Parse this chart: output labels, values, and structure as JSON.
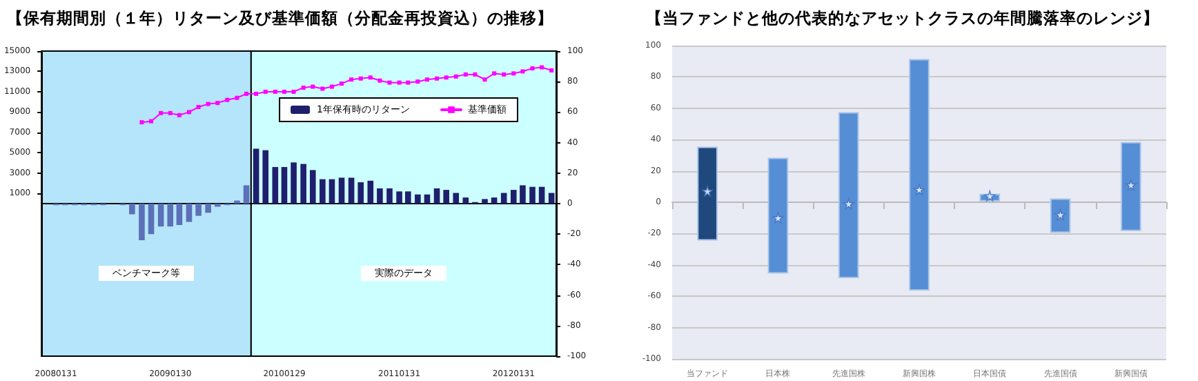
{
  "chart_data": [
    {
      "type": "bar",
      "title": "【保有期間別（１年）リターン及び基準価額（分配金再投資込）の推移】",
      "x": [
        "2008-01-31",
        "2008-02-29",
        "2008-03-31",
        "2008-04-30",
        "2008-05-31",
        "2008-06-30",
        "2008-07-31",
        "2008-08-31",
        "2008-09-30",
        "2008-10-31",
        "2008-11-30",
        "2008-12-31",
        "2009-01-30",
        "2009-02-28",
        "2009-03-31",
        "2009-04-30",
        "2009-05-31",
        "2009-06-30",
        "2009-07-31",
        "2009-08-31",
        "2009-09-30",
        "2009-10-31",
        "2009-11-30",
        "2009-12-31",
        "2010-01-29",
        "2010-02-28",
        "2010-03-31",
        "2010-04-30",
        "2010-05-31",
        "2010-06-30",
        "2010-07-31",
        "2010-08-31",
        "2010-09-30",
        "2010-10-31",
        "2010-11-30",
        "2010-12-31",
        "2011-01-31",
        "2011-02-28",
        "2011-03-31",
        "2011-04-30",
        "2011-05-31",
        "2011-06-30",
        "2011-07-31",
        "2011-08-31",
        "2011-09-30",
        "2011-10-31",
        "2011-11-30",
        "2011-12-31",
        "2012-01-31",
        "2012-02-29",
        "2012-03-31",
        "2012-04-30",
        "2012-05-31"
      ],
      "xlim": [
        "2007-12-16",
        "2012-06-15"
      ],
      "xticks": [
        {
          "value": "2008-01-31",
          "label": "20080131"
        },
        {
          "value": "2009-01-30",
          "label": "20090130"
        },
        {
          "value": "2010-01-29",
          "label": "20100129"
        },
        {
          "value": "2011-01-31",
          "label": "20110131"
        },
        {
          "value": "2012-01-31",
          "label": "20120131"
        }
      ],
      "ylim": [
        -15000,
        15000
      ],
      "yticks": [
        1000,
        3000,
        5000,
        7000,
        9000,
        11000,
        13000,
        15000
      ],
      "y2lim": [
        -100,
        100
      ],
      "y2ticks": [
        -100,
        -80,
        -60,
        -40,
        -20,
        0,
        20,
        40,
        60,
        80,
        100
      ],
      "legend": "top right",
      "bands": [
        {
          "axis": "x",
          "from": "2007-12-16",
          "to": "2009-10-15",
          "label": "ベンチマーク等",
          "color": "#b5e5fa"
        },
        {
          "axis": "x",
          "from": "2009-10-15",
          "to": "2012-06-15",
          "label": "実際のデータ",
          "color": "#ccffff"
        }
      ],
      "series": [
        {
          "name": "1年保有時のリターン",
          "axis": "y2",
          "color": "#1f1f6e",
          "colors": [
            "#5b70b8",
            "#5b70b8",
            "#5b70b8",
            "#5b70b8",
            "#5b70b8",
            "#5b70b8",
            "#5b70b8",
            "#5b70b8",
            "#5b70b8",
            "#5b70b8",
            "#5b70b8",
            "#5b70b8",
            "#5b70b8",
            "#5b70b8",
            "#5b70b8",
            "#5b70b8",
            "#5b70b8",
            "#5b70b8",
            "#5b70b8",
            "#5b70b8",
            "#5b70b8",
            "#1f1f6e",
            "#1f1f6e",
            "#1f1f6e",
            "#1f1f6e",
            "#1f1f6e",
            "#1f1f6e",
            "#1f1f6e",
            "#1f1f6e",
            "#1f1f6e",
            "#1f1f6e",
            "#1f1f6e",
            "#1f1f6e",
            "#1f1f6e",
            "#1f1f6e",
            "#1f1f6e",
            "#1f1f6e",
            "#1f1f6e",
            "#1f1f6e",
            "#1f1f6e",
            "#1f1f6e",
            "#1f1f6e",
            "#1f1f6e",
            "#1f1f6e",
            "#1f1f6e",
            "#1f1f6e",
            "#1f1f6e",
            "#1f1f6e",
            "#1f1f6e",
            "#1f1f6e",
            "#1f1f6e",
            "#1f1f6e",
            "#1f1f6e"
          ],
          "values": [
            -1,
            -1,
            -1,
            -1,
            -1,
            -1,
            null,
            -1,
            -7,
            -24,
            -20,
            -15,
            -15,
            -14,
            -12,
            -8,
            -6,
            -2,
            -1,
            2,
            12,
            36,
            35,
            24,
            24,
            27,
            26,
            22,
            16,
            16,
            17,
            17,
            14,
            15,
            10,
            10,
            8,
            8,
            6,
            6,
            10,
            9,
            7,
            4,
            1,
            3,
            4,
            7,
            9,
            12,
            11,
            11,
            7
          ]
        },
        {
          "name": "基準価額",
          "type": "line",
          "axis": "y",
          "color": "#ff00ff",
          "marker": "square",
          "values": [
            null,
            null,
            null,
            null,
            null,
            null,
            null,
            null,
            null,
            8000,
            8100,
            8900,
            8900,
            8700,
            9000,
            9500,
            9800,
            9900,
            10200,
            10400,
            10800,
            10800,
            11000,
            11000,
            11000,
            11000,
            11400,
            11500,
            11300,
            11500,
            11800,
            12200,
            12300,
            12400,
            12100,
            11900,
            11900,
            11900,
            12000,
            12200,
            12300,
            12400,
            12500,
            12700,
            12700,
            12200,
            12800,
            12700,
            12800,
            13000,
            13300,
            13400,
            13100
          ]
        }
      ]
    },
    {
      "type": "bar",
      "title": "【当ファンドと他の代表的なアセットクラスの年間騰落率のレンジ】",
      "categories": [
        "当ファンド",
        "日本株",
        "先進国株",
        "新興国株",
        "日本国債",
        "先進国債",
        "新興国債"
      ],
      "ylim": [
        -100,
        100
      ],
      "yticks": [
        -100,
        -80,
        -60,
        -40,
        -20,
        0,
        20,
        40,
        60,
        80,
        100
      ],
      "grid": "y",
      "series": [
        {
          "base": [
            -24,
            -45,
            -48,
            -56,
            1,
            -19,
            -18
          ],
          "values": [
            59,
            73,
            105,
            147,
            4,
            21,
            56
          ],
          "colors": [
            "#1f497d",
            "#558ed5",
            "#558ed5",
            "#558ed5",
            "#558ed5",
            "#558ed5",
            "#558ed5"
          ]
        },
        {
          "type": "scatter",
          "x": [
            "当ファンド",
            "日本株",
            "先進国株",
            "新興国株",
            "日本国債",
            "先進国債",
            "新興国債"
          ],
          "values": [
            7,
            -10,
            -1,
            8,
            4,
            -8,
            11
          ],
          "marker": "star",
          "color": "#ffffff"
        }
      ]
    }
  ]
}
